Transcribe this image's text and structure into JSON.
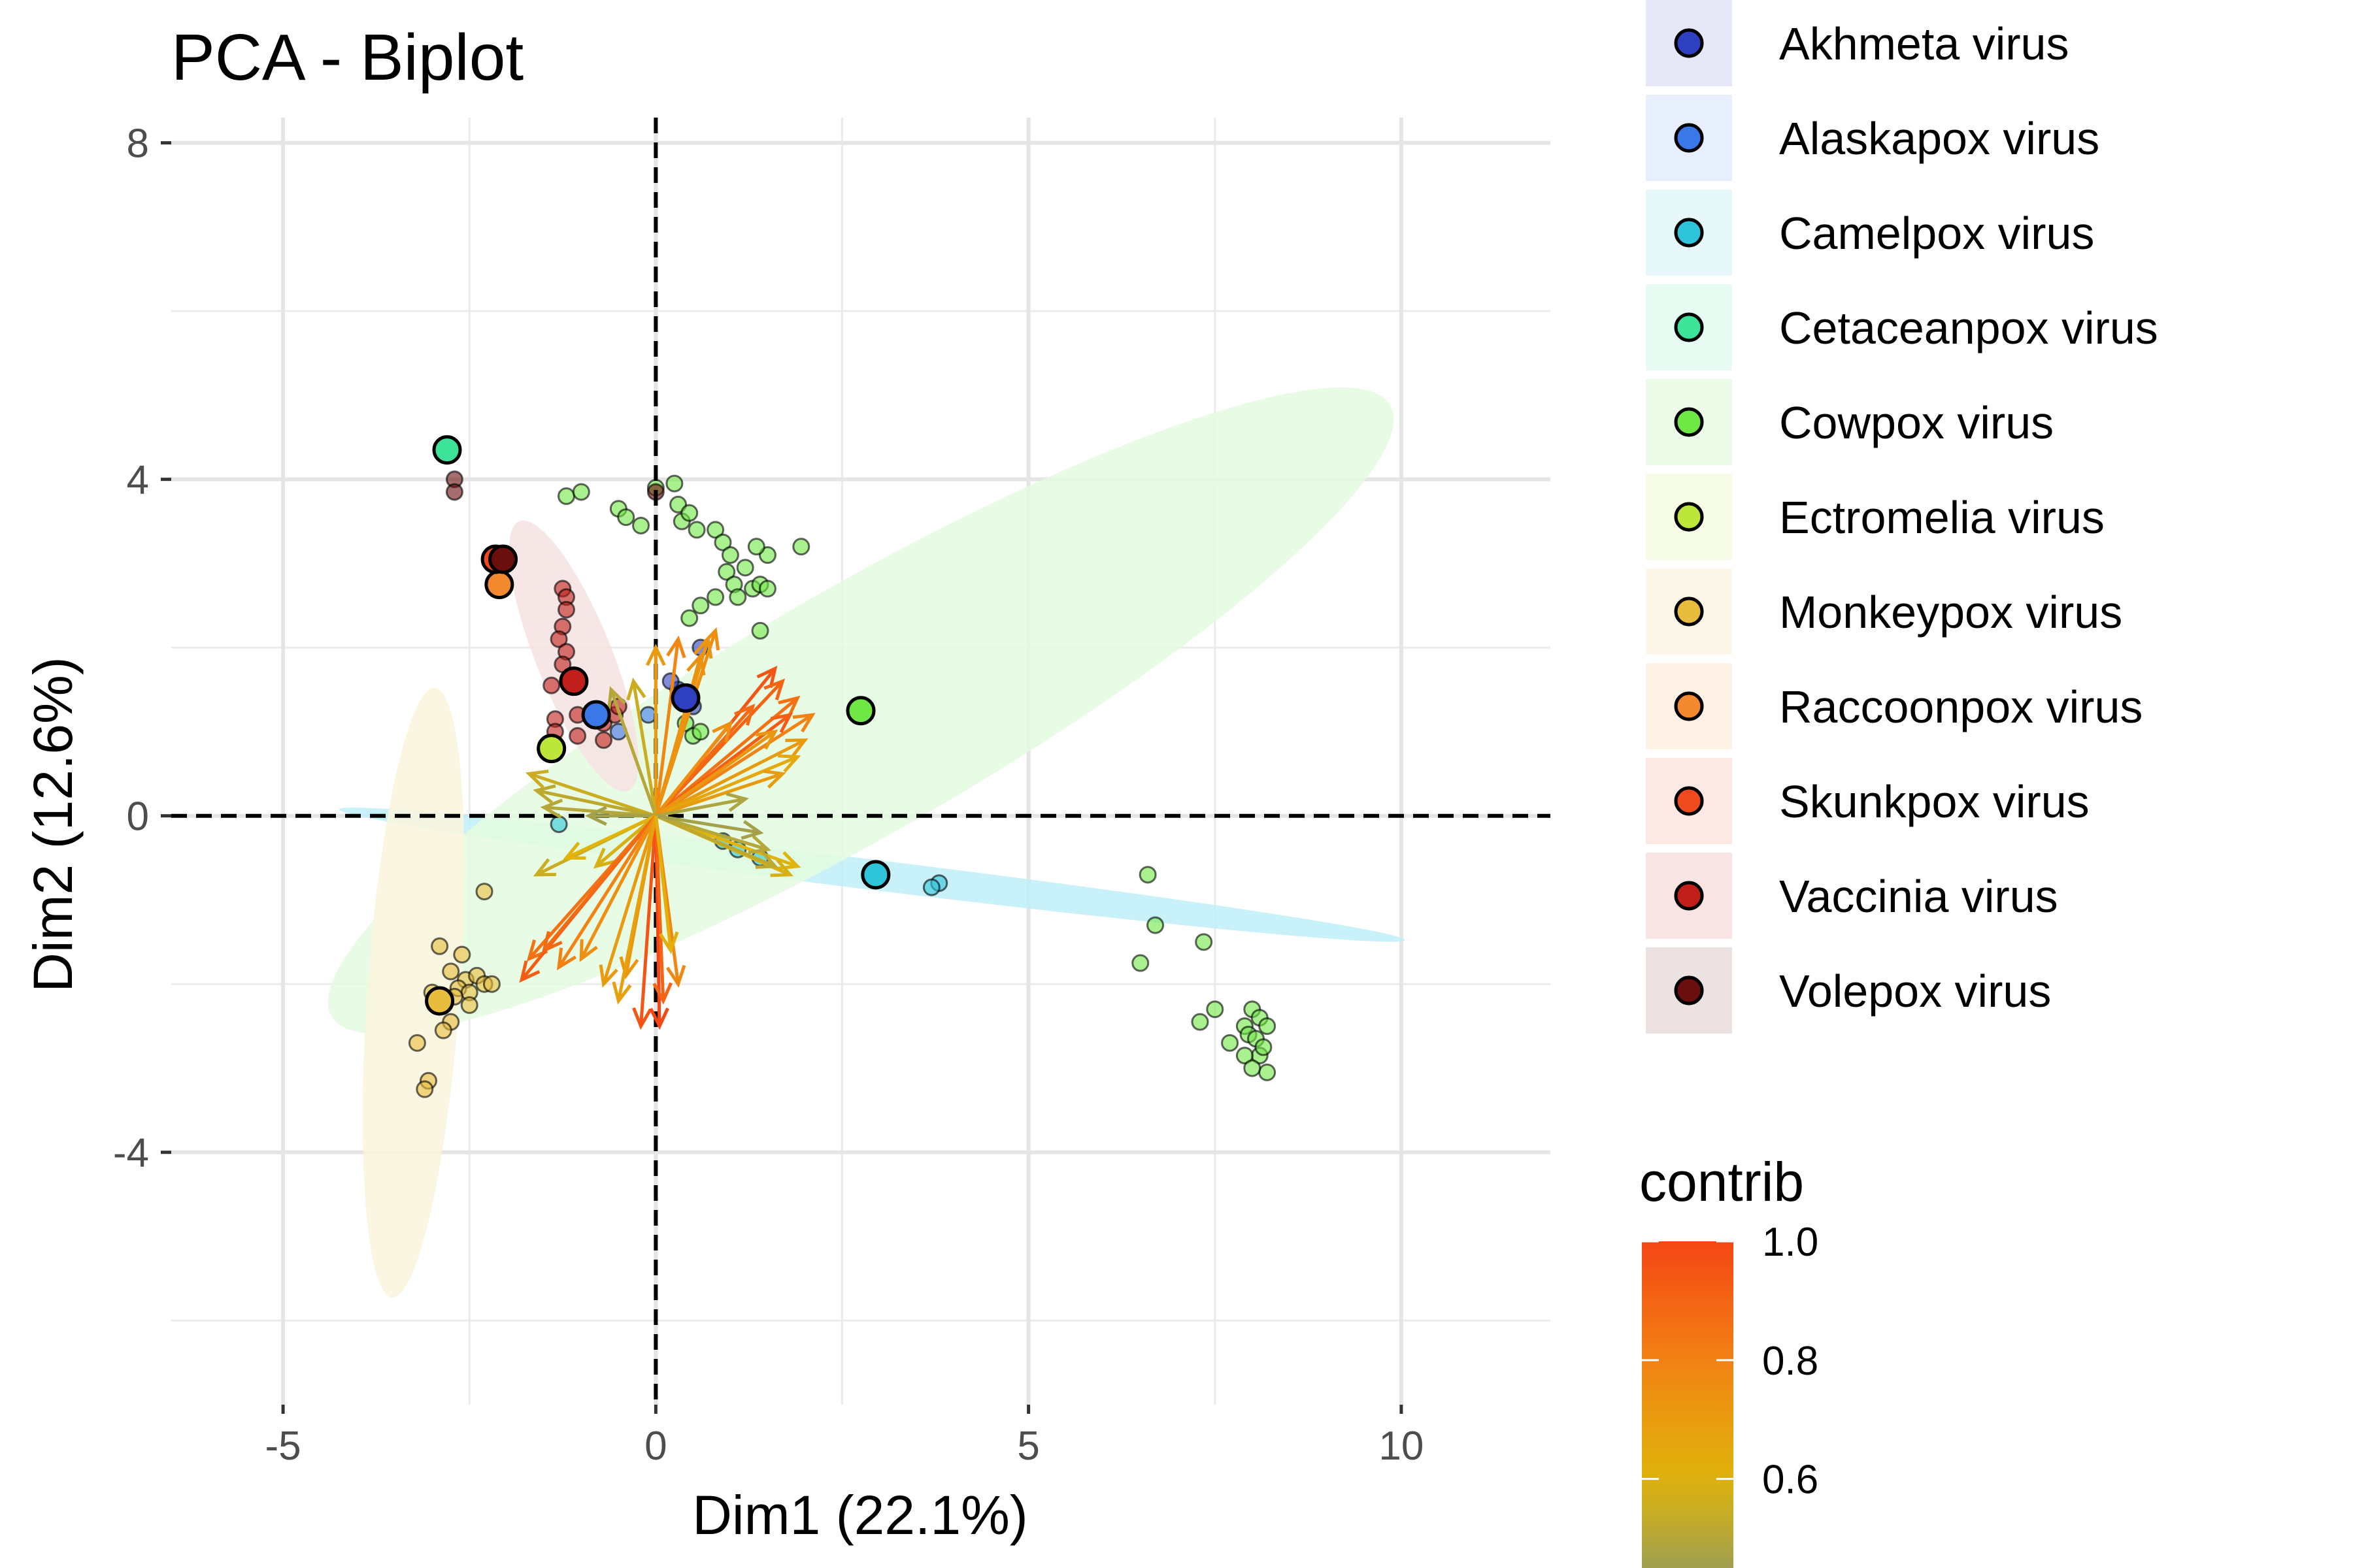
{
  "chart_data": {
    "type": "scatter",
    "title": "PCA - Biplot",
    "xlabel": "Dim1 (22.1%)",
    "ylabel": "Dim2 (12.6%)",
    "xlim": [
      -6.5,
      12
    ],
    "ylim": [
      -7,
      8.3
    ],
    "x_ticks": [
      -5,
      0,
      5,
      10
    ],
    "x_tick_labels": [
      "-5",
      "0",
      "5",
      "10"
    ],
    "y_ticks": [
      -4,
      0,
      4,
      8
    ],
    "y_tick_labels": [
      "-4",
      "0",
      "4",
      "8"
    ],
    "grid": true,
    "legend_position": "right",
    "groups": [
      {
        "name": "Akhmeta virus",
        "color": "#2e3fbf",
        "centroid": [
          0.4,
          1.4
        ],
        "points": [
          [
            0.6,
            2.0
          ],
          [
            0.3,
            1.5
          ],
          [
            0.5,
            1.3
          ],
          [
            0.2,
            1.6
          ],
          [
            0.4,
            1.4
          ]
        ]
      },
      {
        "name": "Alaskapox virus",
        "color": "#3a78e8",
        "centroid": [
          -0.8,
          1.2
        ],
        "points": [
          [
            -0.1,
            1.2
          ],
          [
            -0.5,
            1.0
          ]
        ]
      },
      {
        "name": "Camelpox virus",
        "color": "#2ec4d9",
        "centroid": [
          2.95,
          -0.7
        ],
        "points": [
          [
            3.8,
            -0.8
          ],
          [
            3.7,
            -0.85
          ],
          [
            1.1,
            -0.4
          ],
          [
            1.4,
            -0.5
          ],
          [
            -1.3,
            -0.1
          ],
          [
            0.9,
            -0.3
          ]
        ],
        "ellipse": {
          "cx": 2.9,
          "cy": -0.7,
          "rx": 7.2,
          "ry": 0.18,
          "angle": -7,
          "color": "#bfeef8"
        }
      },
      {
        "name": "Cetaceanpox virus",
        "color": "#3ee39a",
        "centroid": [
          -2.8,
          4.35
        ],
        "points": []
      },
      {
        "name": "Cowpox virus",
        "color": "#6fe845",
        "centroid": [
          2.75,
          1.25
        ],
        "points": [
          [
            -1.2,
            3.8
          ],
          [
            -1.0,
            3.85
          ],
          [
            -0.5,
            3.65
          ],
          [
            -0.4,
            3.55
          ],
          [
            -0.2,
            3.45
          ],
          [
            0.0,
            3.9
          ],
          [
            0.25,
            3.95
          ],
          [
            0.3,
            3.7
          ],
          [
            0.35,
            3.5
          ],
          [
            0.45,
            3.6
          ],
          [
            0.55,
            3.4
          ],
          [
            0.8,
            3.4
          ],
          [
            0.9,
            3.25
          ],
          [
            1.0,
            3.1
          ],
          [
            0.95,
            2.9
          ],
          [
            1.05,
            2.75
          ],
          [
            1.1,
            2.6
          ],
          [
            1.2,
            2.95
          ],
          [
            1.3,
            2.7
          ],
          [
            1.4,
            2.75
          ],
          [
            1.5,
            2.7
          ],
          [
            1.5,
            3.1
          ],
          [
            1.35,
            3.2
          ],
          [
            1.95,
            3.2
          ],
          [
            0.8,
            2.6
          ],
          [
            0.6,
            2.5
          ],
          [
            0.45,
            2.35
          ],
          [
            1.4,
            2.2
          ],
          [
            0.4,
            1.1
          ],
          [
            0.5,
            0.95
          ],
          [
            0.6,
            1.0
          ],
          [
            6.6,
            -0.7
          ],
          [
            6.7,
            -1.3
          ],
          [
            7.35,
            -1.5
          ],
          [
            6.5,
            -1.75
          ],
          [
            7.3,
            -2.45
          ],
          [
            7.5,
            -2.3
          ],
          [
            7.7,
            -2.7
          ],
          [
            7.9,
            -2.5
          ],
          [
            8.0,
            -2.3
          ],
          [
            8.1,
            -2.4
          ],
          [
            8.2,
            -2.5
          ],
          [
            7.95,
            -2.6
          ],
          [
            8.05,
            -2.65
          ],
          [
            8.1,
            -2.85
          ],
          [
            8.2,
            -3.05
          ],
          [
            7.9,
            -2.85
          ],
          [
            8.0,
            -3.0
          ],
          [
            8.15,
            -2.75
          ]
        ],
        "ellipse": {
          "cx": 2.75,
          "cy": 1.25,
          "rx": 8.2,
          "ry": 1.45,
          "angle": 30,
          "color": "#e4fbe0"
        }
      },
      {
        "name": "Ectromelia virus",
        "color": "#bde63a",
        "centroid": [
          -1.4,
          0.8
        ],
        "points": []
      },
      {
        "name": "Monkeypox virus",
        "color": "#e8bd3e",
        "centroid": [
          -2.9,
          -2.2
        ],
        "points": [
          [
            -2.3,
            -0.9
          ],
          [
            -2.9,
            -1.55
          ],
          [
            -2.6,
            -1.65
          ],
          [
            -2.75,
            -1.85
          ],
          [
            -2.55,
            -1.95
          ],
          [
            -2.4,
            -1.9
          ],
          [
            -2.3,
            -2.0
          ],
          [
            -2.2,
            -2.0
          ],
          [
            -2.65,
            -2.05
          ],
          [
            -2.5,
            -2.1
          ],
          [
            -3.0,
            -2.1
          ],
          [
            -2.7,
            -2.15
          ],
          [
            -2.9,
            -2.25
          ],
          [
            -2.5,
            -2.25
          ],
          [
            -2.75,
            -2.45
          ],
          [
            -2.85,
            -2.55
          ],
          [
            -3.2,
            -2.7
          ],
          [
            -3.05,
            -3.15
          ],
          [
            -3.1,
            -3.25
          ]
        ],
        "ellipse": {
          "cx": -3.25,
          "cy": -2.1,
          "rx": 4.1,
          "ry": 0.55,
          "angle": 86,
          "color": "#faf4dd"
        }
      },
      {
        "name": "Raccoonpox virus",
        "color": "#f3892f",
        "centroid": [
          -2.1,
          2.75
        ],
        "points": []
      },
      {
        "name": "Skunkpox virus",
        "color": "#ee4a1e",
        "centroid": [
          -2.15,
          3.05
        ],
        "points": []
      },
      {
        "name": "Vaccinia virus",
        "color": "#c01f1b",
        "centroid": [
          -1.1,
          1.6
        ],
        "points": [
          [
            -1.25,
            2.7
          ],
          [
            -1.2,
            2.6
          ],
          [
            -1.2,
            2.45
          ],
          [
            -1.25,
            2.25
          ],
          [
            -1.3,
            2.1
          ],
          [
            -1.2,
            1.95
          ],
          [
            -1.25,
            1.8
          ],
          [
            -1.4,
            1.55
          ],
          [
            -1.35,
            1.15
          ],
          [
            -1.05,
            1.2
          ],
          [
            -0.7,
            1.1
          ],
          [
            -1.35,
            1.0
          ],
          [
            -1.05,
            0.95
          ],
          [
            -0.55,
            1.2
          ],
          [
            -0.5,
            1.3
          ],
          [
            -0.7,
            0.9
          ]
        ],
        "ellipse": {
          "cx": -1.1,
          "cy": 1.9,
          "rx": 1.95,
          "ry": 0.45,
          "angle": -68,
          "color": "#f6e2e2"
        }
      },
      {
        "name": "Volepox virus",
        "color": "#6b0e0e",
        "centroid": [
          -2.05,
          3.05
        ],
        "points": [
          [
            -2.7,
            4.0
          ],
          [
            -2.7,
            3.85
          ],
          [
            0.0,
            3.85
          ]
        ]
      }
    ],
    "variables": {
      "colorbar_title": "contrib",
      "colorbar_ticks": [
        0.6,
        0.8,
        1.0
      ],
      "colorbar_tick_labels": [
        "0.6",
        "0.8",
        "1.0"
      ],
      "colorbar_range": [
        0.45,
        1.0
      ],
      "arrows": [
        [
          0.8,
          2.2,
          0.75
        ],
        [
          0.7,
          2.1,
          0.72
        ],
        [
          0.0,
          2.0,
          0.7
        ],
        [
          0.3,
          2.1,
          0.78
        ],
        [
          0.6,
          1.9,
          0.74
        ],
        [
          -0.3,
          1.6,
          0.55
        ],
        [
          -0.6,
          1.5,
          0.5
        ],
        [
          1.6,
          1.75,
          0.95
        ],
        [
          1.7,
          1.6,
          0.9
        ],
        [
          1.9,
          1.4,
          0.85
        ],
        [
          2.1,
          1.2,
          0.8
        ],
        [
          1.8,
          1.2,
          0.92
        ],
        [
          2.0,
          0.9,
          0.7
        ],
        [
          1.9,
          0.7,
          0.65
        ],
        [
          1.7,
          0.5,
          0.7
        ],
        [
          1.3,
          1.3,
          0.88
        ],
        [
          1.6,
          1.0,
          0.72
        ],
        [
          1.0,
          1.1,
          0.75
        ],
        [
          1.9,
          -0.6,
          0.6
        ],
        [
          1.8,
          -0.7,
          0.58
        ],
        [
          1.6,
          -0.6,
          0.52
        ],
        [
          1.5,
          -0.4,
          0.5
        ],
        [
          1.2,
          0.2,
          0.48
        ],
        [
          1.4,
          -0.2,
          0.46
        ],
        [
          -1.7,
          0.5,
          0.55
        ],
        [
          -1.6,
          0.3,
          0.52
        ],
        [
          -1.5,
          0.1,
          0.5
        ],
        [
          -0.9,
          0.0,
          0.46
        ],
        [
          -1.6,
          -0.7,
          0.55
        ],
        [
          -1.2,
          -0.5,
          0.6
        ],
        [
          -0.8,
          -0.6,
          0.58
        ],
        [
          -1.7,
          -1.7,
          0.85
        ],
        [
          -1.8,
          -1.95,
          0.92
        ],
        [
          -1.5,
          -1.6,
          0.88
        ],
        [
          -1.3,
          -1.8,
          0.8
        ],
        [
          -1.0,
          -1.7,
          0.75
        ],
        [
          -0.7,
          -2.0,
          0.7
        ],
        [
          -0.4,
          -1.9,
          0.72
        ],
        [
          -0.2,
          -2.5,
          0.95
        ],
        [
          0.05,
          -2.5,
          1.0
        ],
        [
          0.1,
          -2.2,
          0.9
        ],
        [
          0.3,
          -2.0,
          0.78
        ],
        [
          -0.5,
          -2.2,
          0.68
        ],
        [
          0.2,
          -1.6,
          0.62
        ]
      ]
    }
  }
}
